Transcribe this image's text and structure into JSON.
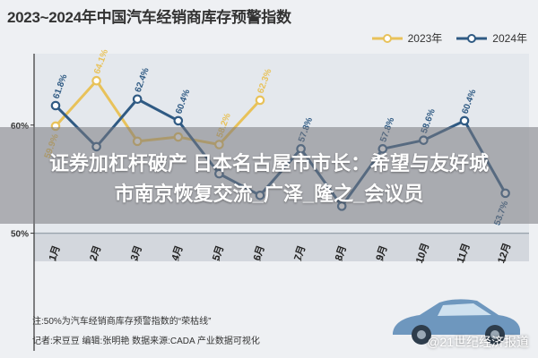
{
  "title": "2023~2024年中国汽车经销商库存预警指数",
  "legend": [
    {
      "name": "2023年",
      "color": "#e8c25a"
    },
    {
      "name": "2024年",
      "color": "#2f5a83"
    }
  ],
  "banner": {
    "line1": "证券加杠杆破产 日本名古屋市市长：希望与友好城",
    "line2": "市南京恢复交流_广泽_隆之_会议员"
  },
  "note": "注:50%为汽车经销商库存预警指数的“荣枯线”",
  "credit": "记者:宋豆豆  编辑:张明艳  数据来源:CADA  产业数据可视化",
  "watermark": "@21世纪经济报道",
  "chart_data": {
    "type": "line",
    "categories": [
      "1月",
      "2月",
      "3月",
      "4月",
      "5月",
      "6月",
      "7月",
      "8月",
      "9月",
      "10月",
      "11月",
      "12月"
    ],
    "series": [
      {
        "name": "2023年",
        "color": "#e8c25a",
        "values": [
          59.9,
          64.1,
          58.5,
          58.9,
          58.2,
          62.3,
          null,
          null,
          null,
          null,
          null,
          null
        ],
        "labels": [
          "59.9%",
          "64.1%",
          "",
          "",
          "58.2%",
          "62.3%",
          "",
          "",
          "",
          "",
          "",
          ""
        ]
      },
      {
        "name": "2024年",
        "color": "#2f5a83",
        "values": [
          61.8,
          58.0,
          62.4,
          60.4,
          55.5,
          53.5,
          57.8,
          52.5,
          57.8,
          58.6,
          60.4,
          53.7
        ],
        "labels": [
          "61.8%",
          "",
          "62.4%",
          "60.4%",
          "",
          "",
          "57.8%",
          "",
          "57.8%",
          "58.6%",
          "60.4%",
          "53.7%"
        ]
      }
    ],
    "yticks": [
      {
        "value": 60,
        "label": "60%"
      },
      {
        "value": 50,
        "label": "50%"
      }
    ],
    "ylim": [
      47.4,
      66.6
    ],
    "threshold": 50,
    "grid": false
  }
}
